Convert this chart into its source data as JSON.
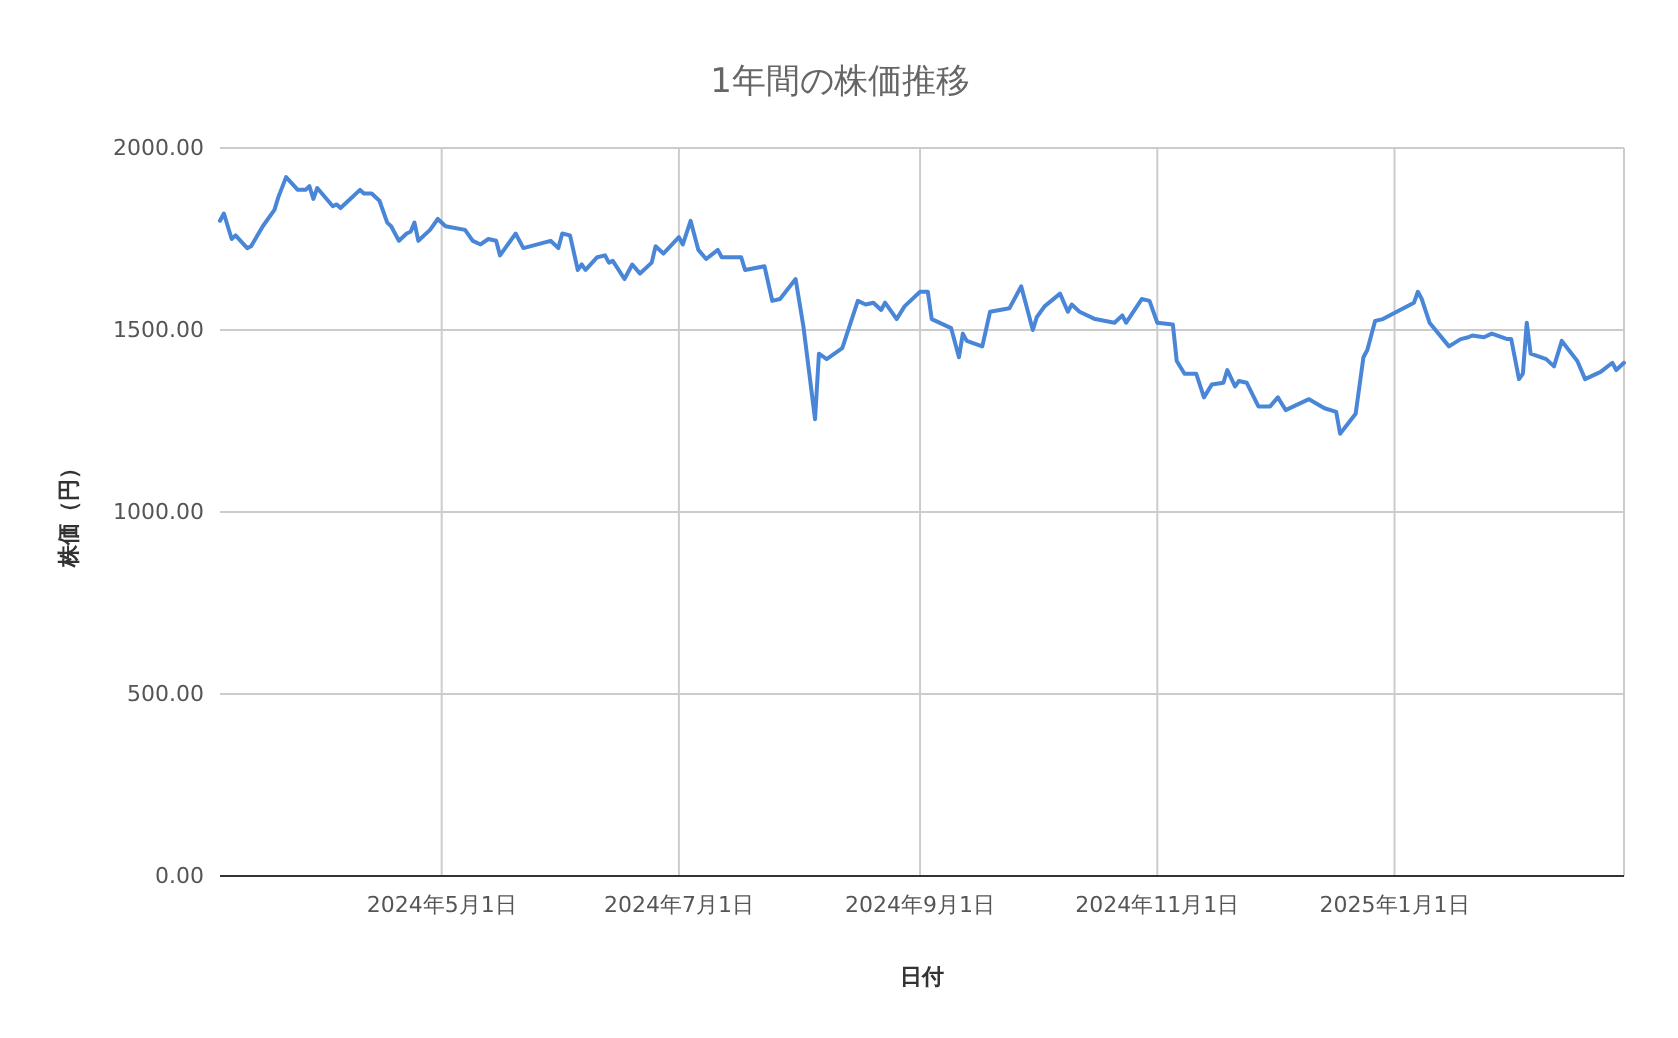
{
  "chart_data": {
    "type": "line",
    "title": "1年間の株価推移",
    "xlabel": "日付",
    "ylabel": "株価（円）",
    "grid": true,
    "xlim": [
      "2024-03-05",
      "2025-03-01"
    ],
    "xticks": [
      {
        "value": "2024-05-01",
        "label": "2024年5月1日"
      },
      {
        "value": "2024-07-01",
        "label": "2024年7月1日"
      },
      {
        "value": "2024-09-01",
        "label": "2024年9月1日"
      },
      {
        "value": "2024-11-01",
        "label": "2024年11月1日"
      },
      {
        "value": "2025-01-01",
        "label": "2025年1月1日"
      },
      {
        "value": "2025-03-01",
        "label": null
      }
    ],
    "ylim": [
      0,
      2000
    ],
    "yticks": [
      {
        "value": 0,
        "label": "0.00"
      },
      {
        "value": 500,
        "label": "500.00"
      },
      {
        "value": 1000,
        "label": "1000.00"
      },
      {
        "value": 1500,
        "label": "1500.00"
      },
      {
        "value": 2000,
        "label": "2000.00"
      }
    ],
    "x": [
      "2024-03-05",
      "2024-03-06",
      "2024-03-08",
      "2024-03-09",
      "2024-03-12",
      "2024-03-13",
      "2024-03-16",
      "2024-03-19",
      "2024-03-20",
      "2024-03-22",
      "2024-03-25",
      "2024-03-27",
      "2024-03-28",
      "2024-03-29",
      "2024-03-30",
      "2024-04-03",
      "2024-04-04",
      "2024-04-05",
      "2024-04-07",
      "2024-04-10",
      "2024-04-11",
      "2024-04-13",
      "2024-04-15",
      "2024-04-17",
      "2024-04-18",
      "2024-04-20",
      "2024-04-22",
      "2024-04-23",
      "2024-04-24",
      "2024-04-25",
      "2024-04-28",
      "2024-04-30",
      "2024-05-02",
      "2024-05-07",
      "2024-05-09",
      "2024-05-11",
      "2024-05-13",
      "2024-05-15",
      "2024-05-16",
      "2024-05-20",
      "2024-05-22",
      "2024-05-29",
      "2024-05-31",
      "2024-06-01",
      "2024-06-03",
      "2024-06-05",
      "2024-06-06",
      "2024-06-07",
      "2024-06-10",
      "2024-06-12",
      "2024-06-13",
      "2024-06-14",
      "2024-06-17",
      "2024-06-19",
      "2024-06-21",
      "2024-06-24",
      "2024-06-25",
      "2024-06-27",
      "2024-07-01",
      "2024-07-02",
      "2024-07-04",
      "2024-07-06",
      "2024-07-08",
      "2024-07-11",
      "2024-07-12",
      "2024-07-17",
      "2024-07-18",
      "2024-07-23",
      "2024-07-25",
      "2024-07-27",
      "2024-07-31",
      "2024-08-02",
      "2024-08-05",
      "2024-08-06",
      "2024-08-08",
      "2024-08-12",
      "2024-08-16",
      "2024-08-18",
      "2024-08-20",
      "2024-08-22",
      "2024-08-23",
      "2024-08-26",
      "2024-08-28",
      "2024-09-01",
      "2024-09-03",
      "2024-09-04",
      "2024-09-09",
      "2024-09-11",
      "2024-09-12",
      "2024-09-13",
      "2024-09-17",
      "2024-09-19",
      "2024-09-24",
      "2024-09-27",
      "2024-09-30",
      "2024-10-01",
      "2024-10-03",
      "2024-10-07",
      "2024-10-09",
      "2024-10-10",
      "2024-10-12",
      "2024-10-16",
      "2024-10-21",
      "2024-10-23",
      "2024-10-24",
      "2024-10-28",
      "2024-10-30",
      "2024-11-01",
      "2024-11-05",
      "2024-11-06",
      "2024-11-08",
      "2024-11-11",
      "2024-11-13",
      "2024-11-15",
      "2024-11-18",
      "2024-11-19",
      "2024-11-21",
      "2024-11-22",
      "2024-11-24",
      "2024-11-27",
      "2024-11-30",
      "2024-12-02",
      "2024-12-04",
      "2024-12-10",
      "2024-12-14",
      "2024-12-17",
      "2024-12-18",
      "2024-12-22",
      "2024-12-24",
      "2024-12-25",
      "2024-12-27",
      "2024-12-29",
      "2025-01-06",
      "2025-01-07",
      "2025-01-08",
      "2025-01-10",
      "2025-01-15",
      "2025-01-18",
      "2025-01-20",
      "2025-01-21",
      "2025-01-24",
      "2025-01-26",
      "2025-01-30",
      "2025-01-31",
      "2025-02-02",
      "2025-02-03",
      "2025-02-04",
      "2025-02-05",
      "2025-02-09",
      "2025-02-11",
      "2025-02-13",
      "2025-02-17",
      "2025-02-19",
      "2025-02-23",
      "2025-02-26",
      "2025-02-27",
      "2025-03-01"
    ],
    "series": [
      {
        "color": "#4a86d8",
        "values": [
          1800,
          1820,
          1750,
          1760,
          1725,
          1730,
          1785,
          1830,
          1865,
          1920,
          1885,
          1885,
          1895,
          1860,
          1890,
          1840,
          1845,
          1835,
          1855,
          1885,
          1875,
          1875,
          1855,
          1795,
          1785,
          1745,
          1765,
          1770,
          1795,
          1745,
          1775,
          1805,
          1785,
          1775,
          1745,
          1735,
          1750,
          1745,
          1705,
          1765,
          1725,
          1745,
          1725,
          1765,
          1760,
          1665,
          1680,
          1665,
          1700,
          1705,
          1685,
          1690,
          1640,
          1680,
          1655,
          1685,
          1730,
          1710,
          1755,
          1735,
          1800,
          1720,
          1695,
          1720,
          1700,
          1700,
          1665,
          1675,
          1580,
          1585,
          1640,
          1510,
          1255,
          1435,
          1420,
          1450,
          1580,
          1570,
          1575,
          1555,
          1575,
          1530,
          1565,
          1605,
          1605,
          1530,
          1505,
          1425,
          1490,
          1470,
          1455,
          1550,
          1560,
          1620,
          1500,
          1535,
          1565,
          1600,
          1550,
          1570,
          1550,
          1530,
          1520,
          1540,
          1520,
          1585,
          1580,
          1520,
          1515,
          1415,
          1380,
          1380,
          1315,
          1350,
          1355,
          1390,
          1345,
          1360,
          1355,
          1290,
          1290,
          1315,
          1280,
          1310,
          1285,
          1275,
          1215,
          1270,
          1425,
          1445,
          1525,
          1530,
          1575,
          1605,
          1585,
          1520,
          1455,
          1475,
          1480,
          1485,
          1480,
          1490,
          1475,
          1475,
          1365,
          1380,
          1520,
          1435,
          1420,
          1400,
          1470,
          1415,
          1365,
          1385,
          1410,
          1390,
          1410
        ]
      }
    ]
  }
}
